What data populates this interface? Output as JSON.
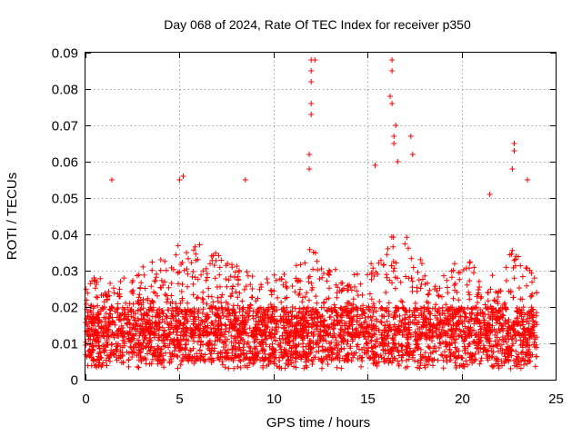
{
  "chart_data": {
    "type": "scatter",
    "title": "Day 068 of 2024, Rate Of TEC Index for receiver p350",
    "xlabel": "GPS time / hours",
    "ylabel": "ROTI / TECUs",
    "xlim": [
      0,
      25
    ],
    "ylim": [
      0,
      0.09
    ],
    "xticks": [
      0,
      5,
      10,
      15,
      20,
      25
    ],
    "xtick_labels": [
      "0",
      "5",
      "10",
      "15",
      "20",
      "25"
    ],
    "yticks": [
      0,
      0.01,
      0.02,
      0.03,
      0.04,
      0.05,
      0.06,
      0.07,
      0.08,
      0.09
    ],
    "ytick_labels": [
      "0",
      "0.01",
      "0.02",
      "0.03",
      "0.04",
      "0.05",
      "0.06",
      "0.07",
      "0.08",
      "0.09"
    ],
    "grid": true,
    "marker": "+",
    "color": "#ff0000",
    "data_range_x": [
      0,
      24
    ],
    "dense_band": [
      0.005,
      0.02
    ],
    "notable_points": [
      {
        "x": 1.4,
        "y": 0.055
      },
      {
        "x": 5.0,
        "y": 0.055
      },
      {
        "x": 5.2,
        "y": 0.056
      },
      {
        "x": 8.5,
        "y": 0.055
      },
      {
        "x": 12.0,
        "y": 0.088
      },
      {
        "x": 12.0,
        "y": 0.085
      },
      {
        "x": 12.0,
        "y": 0.082
      },
      {
        "x": 12.0,
        "y": 0.076
      },
      {
        "x": 12.0,
        "y": 0.073
      },
      {
        "x": 11.9,
        "y": 0.062
      },
      {
        "x": 11.9,
        "y": 0.058
      },
      {
        "x": 12.2,
        "y": 0.088
      },
      {
        "x": 16.3,
        "y": 0.088
      },
      {
        "x": 16.3,
        "y": 0.085
      },
      {
        "x": 16.2,
        "y": 0.078
      },
      {
        "x": 16.3,
        "y": 0.076
      },
      {
        "x": 16.5,
        "y": 0.07
      },
      {
        "x": 16.4,
        "y": 0.067
      },
      {
        "x": 16.4,
        "y": 0.065
      },
      {
        "x": 17.3,
        "y": 0.067
      },
      {
        "x": 17.4,
        "y": 0.062
      },
      {
        "x": 16.6,
        "y": 0.06
      },
      {
        "x": 15.4,
        "y": 0.059
      },
      {
        "x": 22.8,
        "y": 0.065
      },
      {
        "x": 22.8,
        "y": 0.063
      },
      {
        "x": 22.7,
        "y": 0.058
      },
      {
        "x": 23.5,
        "y": 0.055
      },
      {
        "x": 21.5,
        "y": 0.051
      }
    ]
  }
}
